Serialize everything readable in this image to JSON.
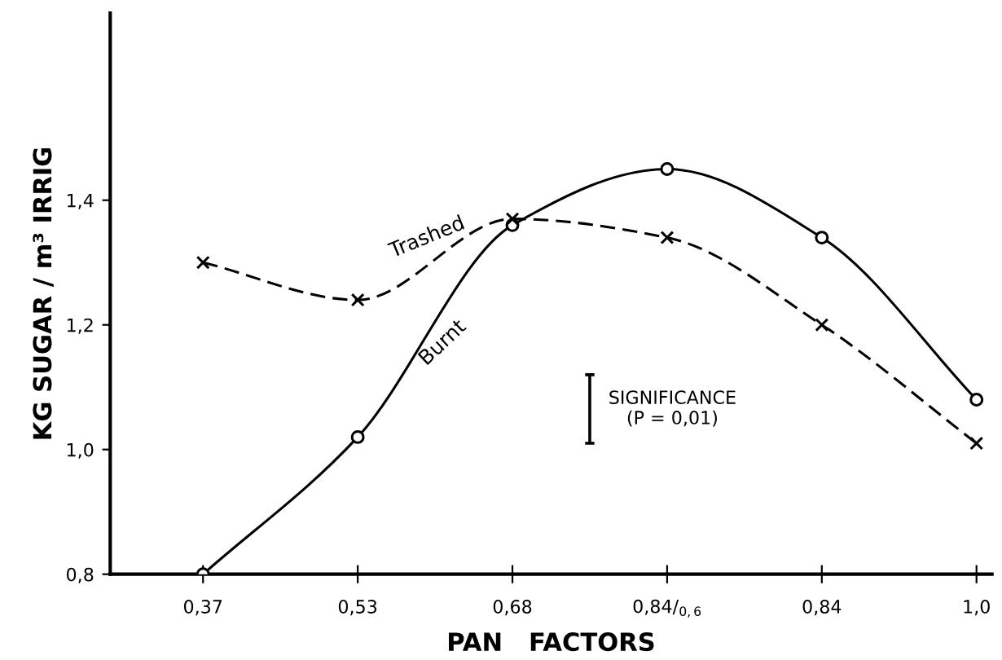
{
  "chart_data": {
    "type": "line",
    "xlabel": "PAN   FACTORS",
    "ylabel": "KG SUGAR / m³ IRRIG",
    "categories": [
      "0,37",
      "0,53",
      "0,68",
      "0,84/$_{0,6}$",
      "0,84",
      "1,0"
    ],
    "series": [
      {
        "name": "Trashed",
        "color": "#000000",
        "marker": "cross",
        "line_style": "dashed",
        "values": [
          1.3,
          1.24,
          1.37,
          1.34,
          1.2,
          1.01
        ]
      },
      {
        "name": "Burnt",
        "color": "#000000",
        "marker": "circle",
        "line_style": "solid",
        "values": [
          0.8,
          1.02,
          1.36,
          1.45,
          1.34,
          1.08
        ]
      }
    ],
    "ylim": [
      0.8,
      1.7
    ],
    "yticks": [
      {
        "value": 0.8,
        "label": "0,8"
      },
      {
        "value": 1.0,
        "label": "1,0"
      },
      {
        "value": 1.2,
        "label": "1,2"
      },
      {
        "value": 1.4,
        "label": "1,4"
      }
    ],
    "annotations": [
      "SIGNIFICANCE\n(P = 0,01)"
    ],
    "grid": false,
    "legend": false
  }
}
